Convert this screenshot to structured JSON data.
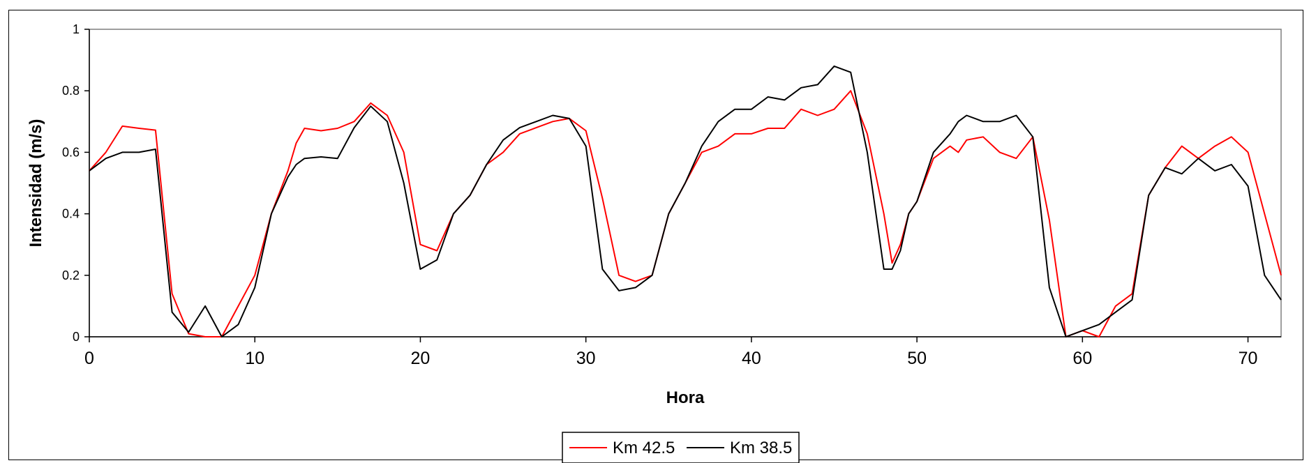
{
  "chart_data": {
    "type": "line",
    "title": "",
    "xlabel": "Hora",
    "ylabel": "Intensidad (m/s)",
    "xlim": [
      0,
      72
    ],
    "ylim": [
      0,
      1
    ],
    "x_ticks": [
      0,
      10,
      20,
      30,
      40,
      50,
      60,
      70
    ],
    "y_ticks": [
      0,
      0.2,
      0.4,
      0.6,
      0.8,
      1
    ],
    "y_tick_labels": [
      "0",
      "0.2",
      "0.4",
      "0.6",
      "0.8",
      "1"
    ],
    "grid": false,
    "legend_position": "bottom-center",
    "series": [
      {
        "name": "Km 42.5",
        "color": "#ff0000",
        "points": [
          [
            0,
            0.54
          ],
          [
            1,
            0.6
          ],
          [
            2,
            0.685
          ],
          [
            3,
            0.678
          ],
          [
            4,
            0.672
          ],
          [
            5,
            0.14
          ],
          [
            6,
            0.01
          ],
          [
            7,
            0.0
          ],
          [
            8,
            0.0
          ],
          [
            9,
            0.1
          ],
          [
            10,
            0.2
          ],
          [
            11,
            0.4
          ],
          [
            12,
            0.54
          ],
          [
            12.5,
            0.63
          ],
          [
            13,
            0.678
          ],
          [
            14,
            0.67
          ],
          [
            15,
            0.678
          ],
          [
            16,
            0.7
          ],
          [
            17,
            0.76
          ],
          [
            18,
            0.72
          ],
          [
            19,
            0.6
          ],
          [
            20,
            0.3
          ],
          [
            21,
            0.28
          ],
          [
            22,
            0.4
          ],
          [
            23,
            0.46
          ],
          [
            24,
            0.56
          ],
          [
            25,
            0.6
          ],
          [
            26,
            0.66
          ],
          [
            27,
            0.68
          ],
          [
            28,
            0.7
          ],
          [
            29,
            0.71
          ],
          [
            30,
            0.67
          ],
          [
            31,
            0.45
          ],
          [
            32,
            0.2
          ],
          [
            33,
            0.18
          ],
          [
            34,
            0.2
          ],
          [
            35,
            0.4
          ],
          [
            36,
            0.5
          ],
          [
            37,
            0.6
          ],
          [
            38,
            0.62
          ],
          [
            39,
            0.66
          ],
          [
            40,
            0.66
          ],
          [
            41,
            0.678
          ],
          [
            42,
            0.678
          ],
          [
            43,
            0.74
          ],
          [
            44,
            0.72
          ],
          [
            45,
            0.74
          ],
          [
            46,
            0.8
          ],
          [
            47,
            0.66
          ],
          [
            48,
            0.4
          ],
          [
            48.5,
            0.24
          ],
          [
            49,
            0.3
          ],
          [
            49.5,
            0.4
          ],
          [
            50,
            0.44
          ],
          [
            51,
            0.58
          ],
          [
            52,
            0.62
          ],
          [
            52.5,
            0.6
          ],
          [
            53,
            0.64
          ],
          [
            54,
            0.65
          ],
          [
            55,
            0.6
          ],
          [
            56,
            0.58
          ],
          [
            57,
            0.65
          ],
          [
            58,
            0.38
          ],
          [
            59,
            0.0
          ],
          [
            60,
            0.02
          ],
          [
            61,
            0.0
          ],
          [
            62,
            0.1
          ],
          [
            63,
            0.14
          ],
          [
            64,
            0.46
          ],
          [
            65,
            0.55
          ],
          [
            66,
            0.62
          ],
          [
            67,
            0.58
          ],
          [
            68,
            0.62
          ],
          [
            69,
            0.65
          ],
          [
            70,
            0.6
          ],
          [
            71,
            0.4
          ],
          [
            72,
            0.2
          ]
        ]
      },
      {
        "name": "Km 38.5",
        "color": "#000000",
        "points": [
          [
            0,
            0.54
          ],
          [
            1,
            0.58
          ],
          [
            2,
            0.6
          ],
          [
            3,
            0.6
          ],
          [
            4,
            0.61
          ],
          [
            5,
            0.08
          ],
          [
            6,
            0.015
          ],
          [
            7,
            0.1
          ],
          [
            8,
            0.0
          ],
          [
            9,
            0.04
          ],
          [
            10,
            0.16
          ],
          [
            11,
            0.4
          ],
          [
            12,
            0.52
          ],
          [
            12.5,
            0.56
          ],
          [
            13,
            0.58
          ],
          [
            14,
            0.585
          ],
          [
            15,
            0.58
          ],
          [
            16,
            0.68
          ],
          [
            17,
            0.75
          ],
          [
            18,
            0.7
          ],
          [
            19,
            0.5
          ],
          [
            20,
            0.22
          ],
          [
            21,
            0.25
          ],
          [
            22,
            0.4
          ],
          [
            23,
            0.46
          ],
          [
            24,
            0.56
          ],
          [
            25,
            0.64
          ],
          [
            26,
            0.68
          ],
          [
            27,
            0.7
          ],
          [
            28,
            0.72
          ],
          [
            29,
            0.71
          ],
          [
            30,
            0.62
          ],
          [
            31,
            0.22
          ],
          [
            32,
            0.15
          ],
          [
            33,
            0.16
          ],
          [
            34,
            0.2
          ],
          [
            35,
            0.4
          ],
          [
            36,
            0.5
          ],
          [
            37,
            0.62
          ],
          [
            38,
            0.7
          ],
          [
            39,
            0.74
          ],
          [
            40,
            0.74
          ],
          [
            41,
            0.78
          ],
          [
            42,
            0.77
          ],
          [
            43,
            0.81
          ],
          [
            44,
            0.82
          ],
          [
            45,
            0.88
          ],
          [
            46,
            0.86
          ],
          [
            47,
            0.6
          ],
          [
            48,
            0.22
          ],
          [
            48.5,
            0.22
          ],
          [
            49,
            0.28
          ],
          [
            49.5,
            0.4
          ],
          [
            50,
            0.44
          ],
          [
            51,
            0.6
          ],
          [
            52,
            0.66
          ],
          [
            52.5,
            0.7
          ],
          [
            53,
            0.72
          ],
          [
            54,
            0.7
          ],
          [
            55,
            0.7
          ],
          [
            56,
            0.72
          ],
          [
            57,
            0.65
          ],
          [
            58,
            0.16
          ],
          [
            59,
            0.0
          ],
          [
            60,
            0.02
          ],
          [
            61,
            0.04
          ],
          [
            62,
            0.08
          ],
          [
            63,
            0.12
          ],
          [
            64,
            0.46
          ],
          [
            65,
            0.55
          ],
          [
            66,
            0.53
          ],
          [
            67,
            0.58
          ],
          [
            68,
            0.54
          ],
          [
            69,
            0.56
          ],
          [
            70,
            0.49
          ],
          [
            71,
            0.2
          ],
          [
            72,
            0.12
          ]
        ]
      }
    ]
  }
}
